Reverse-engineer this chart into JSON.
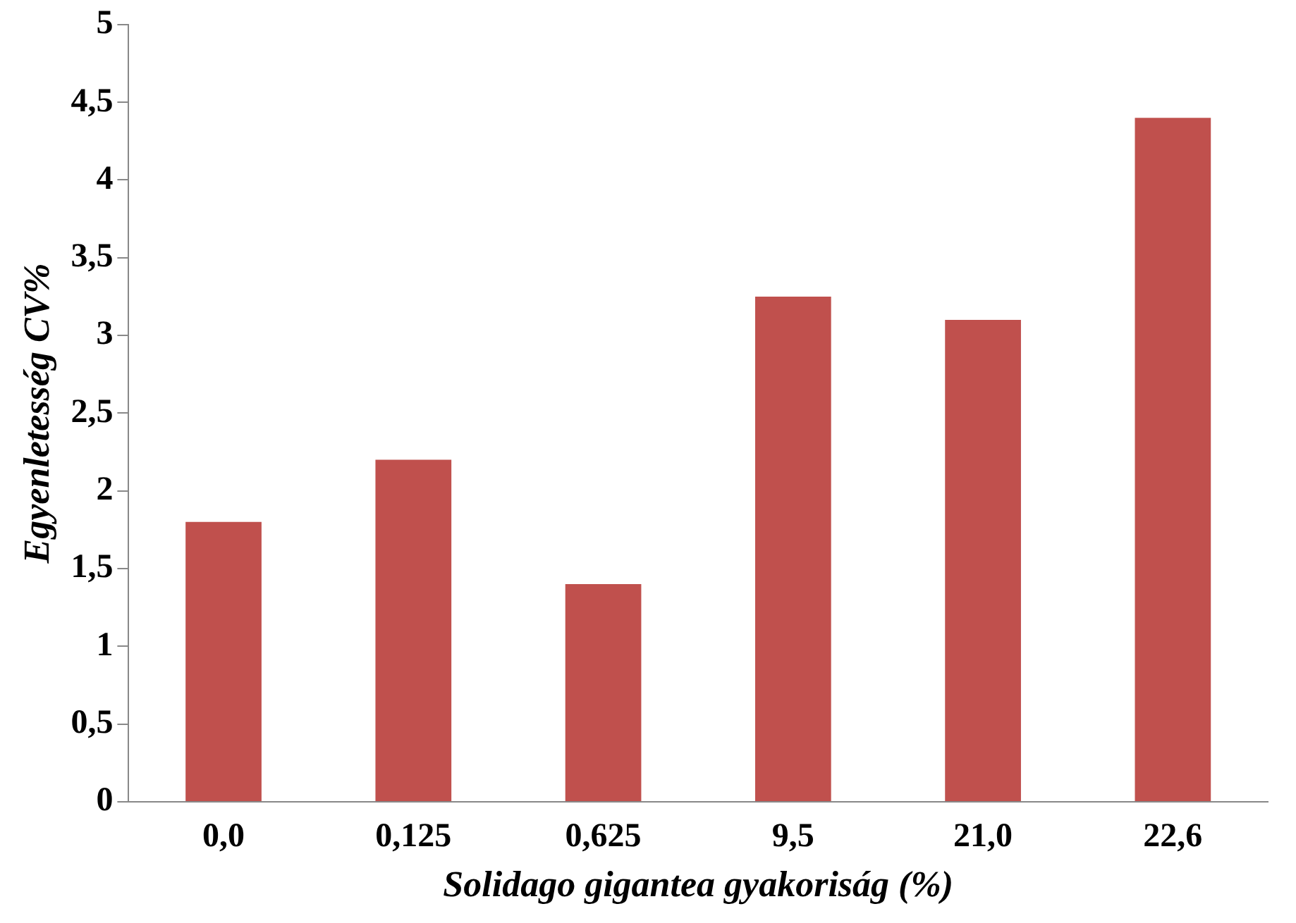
{
  "chart_data": {
    "type": "bar",
    "xlabel": "Solidago gigantea gyakoriság (%)",
    "ylabel": "Egyenletesség CV%",
    "categories": [
      "0,0",
      "0,125",
      "0,625",
      "9,5",
      "21,0",
      "22,6"
    ],
    "values": [
      1.8,
      2.2,
      1.4,
      3.25,
      3.1,
      4.4
    ],
    "color": "#c0504d",
    "ylim": [
      0,
      5
    ],
    "yticks": [
      0,
      {
        "value": 0.5,
        "label": "0,5"
      },
      1,
      {
        "value": 1.5,
        "label": "1,5"
      },
      2,
      {
        "value": 2.5,
        "label": "2,5"
      },
      3,
      {
        "value": 3.5,
        "label": "3,5"
      },
      4,
      {
        "value": 4.5,
        "label": "4,5"
      },
      5
    ],
    "grid": false,
    "legend": false
  }
}
